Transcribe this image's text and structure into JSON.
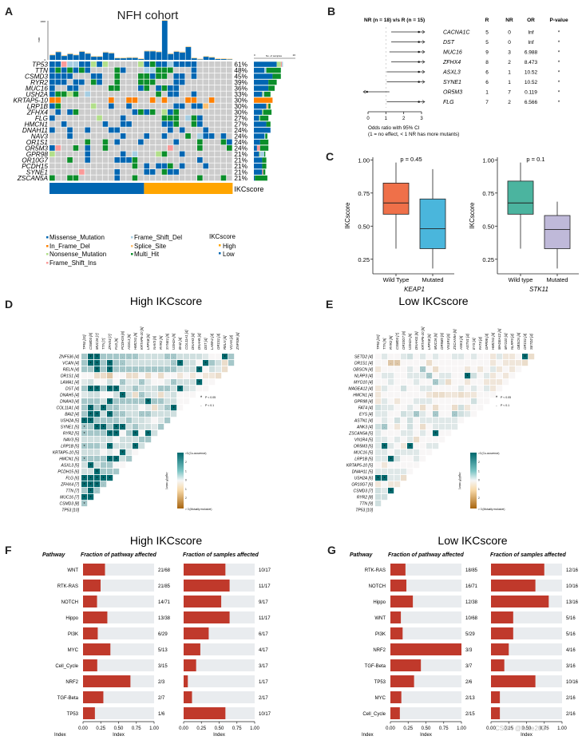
{
  "panels": {
    "A": "A",
    "B": "B",
    "C": "C",
    "D": "D",
    "E": "E",
    "F": "F",
    "G": "G"
  },
  "chart_data": [
    {
      "id": "A",
      "type": "heatmap",
      "title": "NFH cohort",
      "tmb_axis": {
        "label": "TMB",
        "max_label": "1000",
        "min_label": "0"
      },
      "side_axis": {
        "label": "No. of samples",
        "min": 0,
        "max": 20
      },
      "tmb_values": [
        120,
        200,
        100,
        150,
        120,
        210,
        160,
        80,
        80,
        190,
        170,
        40,
        40,
        50,
        50,
        20,
        220,
        220,
        200,
        1000,
        150,
        210,
        190,
        330,
        40,
        10,
        80,
        60,
        20,
        20,
        10
      ],
      "genes": [
        "TP53",
        "TTN",
        "CSMD3",
        "RYR2",
        "MUC16",
        "USH2A",
        "KRTAP5-10",
        "LRP1B",
        "ZFHX4",
        "FLG",
        "HMCN1",
        "DNAH11",
        "NAV3",
        "OR1S1",
        "OR5M3",
        "GPR98",
        "OR10G7",
        "PCDH15",
        "SYNE1",
        "ZSCAN5A"
      ],
      "percents": [
        "61%",
        "48%",
        "45%",
        "39%",
        "36%",
        "33%",
        "30%",
        "30%",
        "30%",
        "27%",
        "27%",
        "24%",
        "24%",
        "24%",
        "24%",
        "21%",
        "21%",
        "21%",
        "21%",
        "21%"
      ],
      "side_bars": [
        [
          [
            "M",
            11
          ],
          [
            "N",
            2
          ],
          [
            "I",
            0.5
          ],
          [
            "D",
            0.5
          ]
        ],
        [
          [
            "M",
            5
          ],
          [
            "D",
            1
          ],
          [
            "H",
            7
          ]
        ],
        [
          [
            "M",
            9
          ],
          [
            "H",
            4
          ]
        ],
        [
          [
            "M",
            7
          ],
          [
            "H",
            4
          ]
        ],
        [
          [
            "M",
            7
          ],
          [
            "H",
            3
          ]
        ],
        [
          [
            "M",
            4
          ],
          [
            "N",
            0.5
          ],
          [
            "D",
            0.5
          ],
          [
            "H",
            3
          ]
        ],
        [
          [
            "F",
            9
          ]
        ],
        [
          [
            "M",
            6
          ],
          [
            "S",
            0.5
          ],
          [
            "S",
            0.5
          ],
          [
            "H",
            1
          ]
        ],
        [
          [
            "M",
            4
          ],
          [
            "N",
            0.5
          ],
          [
            "H",
            4
          ]
        ],
        [
          [
            "M",
            2.5
          ],
          [
            "N",
            0.5
          ],
          [
            "H",
            4
          ]
        ],
        [
          [
            "M",
            6
          ],
          [
            "H",
            2
          ]
        ],
        [
          [
            "M",
            8
          ]
        ],
        [
          [
            "M",
            5
          ],
          [
            "D",
            0.5
          ],
          [
            "H",
            1
          ]
        ],
        [
          [
            "M",
            3
          ],
          [
            "H",
            4
          ]
        ],
        [
          [
            "M",
            1.5
          ],
          [
            "I",
            1.5
          ],
          [
            "H",
            4
          ]
        ],
        [
          [
            "M",
            2.5
          ],
          [
            "N",
            0.5
          ],
          [
            "D",
            2
          ],
          [
            "H",
            0.5
          ]
        ],
        [
          [
            "M",
            4
          ],
          [
            "H",
            2
          ]
        ],
        [
          [
            "M",
            4
          ],
          [
            "H",
            2
          ]
        ],
        [
          [
            "M",
            4
          ],
          [
            "I",
            0.5
          ],
          [
            "H",
            1
          ]
        ],
        [
          [
            "M",
            0.5
          ],
          [
            "H",
            6
          ]
        ]
      ],
      "matrix": [
        "MMIDDMMNMN.....NMHMMDMMMM......",
        "MHMHMHM....HM...DDHHH...M......",
        "MMMM...MM..H...HHMHH.MM.M......",
        "MMM.MM.HM..H...HHH...MM........",
        "M..MM.....HH...MH.MHMM.........",
        "MHHNH.D...........H.MM..M......",
        "FF........F..FF..F.F...FF..F...",
        "MH.....N..M..M.......MM.MMS....",
        ".M.MH.........MHMH.NMH.........",
        "M.......N...M......HHH.DHM.....",
        "..M......M..MM.....MMH..HM.....",
        "M..M..M...MM........M.M...M....",
        "...M........M...M..M...H.DMM.M.",
        "......H..H.M...M.....M...H...HM",
        "MI..H.M..H..........I....H....H",
        "N.....M.....M.D...NH..M........",
        "...H..M....MMMH..........M.....",
        "..............H.M.MMH.M...M....",
        ".....I.....M....MM.HMM.........",
        "H..HH......M..H..........H...H."
      ],
      "ikc_groups": {
        "low_count": 16,
        "high_count": 15,
        "label": "IKCscore"
      },
      "legend": {
        "items": [
          {
            "key": "M",
            "label": "Missense_Mutation",
            "color": "#0066b2"
          },
          {
            "key": "F",
            "label": "In_Frame_Del",
            "color": "#ff8000"
          },
          {
            "key": "N",
            "label": "Nonsense_Mutation",
            "color": "#b2df8a"
          },
          {
            "key": "I",
            "label": "Frame_Shift_Ins",
            "color": "#fb9a99"
          },
          {
            "key": "D",
            "label": "Frame_Shift_Del",
            "color": "#a6cee3"
          },
          {
            "key": "S",
            "label": "Splice_Site",
            "color": "#fdbf6f"
          },
          {
            "key": "H",
            "label": "Multi_Hit",
            "color": "#0b8f2a"
          }
        ],
        "ikc_title": "IKCscore",
        "ikc_items": [
          {
            "label": "High",
            "color": "#ffa500"
          },
          {
            "label": "Low",
            "color": "#0066b2"
          }
        ]
      },
      "empty_color": "#cccccc"
    },
    {
      "id": "B",
      "type": "scatter",
      "title": "NR (n = 18) v/s R (n = 15)",
      "columns": [
        "R",
        "NR",
        "OR",
        "P-value"
      ],
      "xlabel": "Odds ratio with 95% CI",
      "xlabel2": "(1 = no effect, < 1 NR has more mutants)",
      "xlim": [
        0,
        3
      ],
      "xticks": [
        "0",
        "1",
        "2",
        "3"
      ],
      "rows": [
        {
          "gene": "CACNA1C",
          "R": "5",
          "NR": "0",
          "OR": "Inf",
          "p": "*",
          "lo": 1.3,
          "hi": 3,
          "pt": 2.85,
          "arrow": "right"
        },
        {
          "gene": "DST",
          "R": "5",
          "NR": "0",
          "OR": "Inf",
          "p": "*",
          "lo": 1.3,
          "hi": 3,
          "pt": 2.85,
          "arrow": "right"
        },
        {
          "gene": "MUC16",
          "R": "9",
          "NR": "3",
          "OR": "6.988",
          "p": "*",
          "lo": 1.2,
          "hi": 3,
          "pt": 2.85,
          "arrow": "right"
        },
        {
          "gene": "ZFHX4",
          "R": "8",
          "NR": "2",
          "OR": "8.473",
          "p": "*",
          "lo": 1.3,
          "hi": 3,
          "pt": 2.85,
          "arrow": "right"
        },
        {
          "gene": "ASXL3",
          "R": "6",
          "NR": "1",
          "OR": "10.52",
          "p": "*",
          "lo": 1.05,
          "hi": 3,
          "pt": 2.85,
          "arrow": "right"
        },
        {
          "gene": "SYNE1",
          "R": "6",
          "NR": "1",
          "OR": "10.52",
          "p": "*",
          "lo": 1.05,
          "hi": 3,
          "pt": 2.85,
          "arrow": "right"
        },
        {
          "gene": "OR5M3",
          "R": "1",
          "NR": "7",
          "OR": "0.119",
          "p": "*",
          "lo": 0,
          "hi": 1.2,
          "pt": 0.12,
          "arrow": "left"
        },
        {
          "gene": "FLG",
          "R": "7",
          "NR": "2",
          "OR": "6.566",
          "p": "*",
          "lo": 1.05,
          "hi": 3,
          "pt": 2.85,
          "arrow": "right"
        }
      ]
    },
    {
      "id": "C1",
      "type": "box",
      "gene": "KEAP1",
      "ylabel": "IKCscore",
      "ylim": [
        0.14,
        1.02
      ],
      "yticks": [
        0.25,
        0.5,
        0.75,
        1.0
      ],
      "ytick_labels": [
        "0.25",
        "0.50",
        "0.75",
        "1.00"
      ],
      "pvalue": "p = 0.45",
      "groups": [
        {
          "label": "Wild Type",
          "min": 0.33,
          "q1": 0.59,
          "median": 0.675,
          "q3": 0.825,
          "max": 0.98,
          "color": "#ef7049"
        },
        {
          "label": "Mutated",
          "min": 0.18,
          "q1": 0.33,
          "median": 0.48,
          "q3": 0.705,
          "max": 0.93,
          "color": "#4ab6dc"
        }
      ]
    },
    {
      "id": "C2",
      "type": "box",
      "gene": "STK11",
      "ylabel": "IKCscore",
      "ylim": [
        0.14,
        1.02
      ],
      "yticks": [
        0.25,
        0.5,
        0.75,
        1.0
      ],
      "ytick_labels": [
        "0.25",
        "0.50",
        "0.75",
        "1.00"
      ],
      "pvalue": "p = 0.1",
      "groups": [
        {
          "label": "Wild type",
          "min": 0.33,
          "q1": 0.59,
          "median": 0.675,
          "q3": 0.84,
          "max": 0.98,
          "color": "#4bb49f"
        },
        {
          "label": "Mutated",
          "min": 0.18,
          "q1": 0.33,
          "median": 0.475,
          "q3": 0.58,
          "max": 0.685,
          "color": "#bfb9d9"
        }
      ]
    },
    {
      "id": "D",
      "type": "heatmap",
      "title": "High IKCscore",
      "col_genes": [
        "TP53 [10]",
        "CSMD3 [8]",
        "MUC16 [7]",
        "TTN [7]",
        "ZFHX4 [7]",
        "FLG [6]",
        "PCDH15 [6]",
        "ASXL3 [5]",
        "HMCN1 [5]",
        "KRTAP5-10 [5]",
        "LRP1B [5]",
        "NAV3 [5]",
        "RYR2 [5]",
        "SYNE1 [5]",
        "USH2A [5]",
        "BAI2 [4]",
        "COL11A1 [4]",
        "DNAH3 [4]",
        "DNAH5 [4]",
        "DST [4]",
        "LAMA1 [4]",
        "OR1S1 [4]",
        "RELN [4]",
        "VCAN [4]",
        "ZNF536 [4]"
      ],
      "row_genes": [
        "ZNF536 [4]",
        "VCAN [4]",
        "RELN [4]",
        "OR1S1 [4]",
        "LAMA1 [4]",
        "DST [4]",
        "DNAH5 [4]",
        "DNAH3 [4]",
        "COL11A1 [4]",
        "BAI2 [4]",
        "USH2A [5]",
        "SYNE1 [5]",
        "RYR2 [5]",
        "NAV3 [5]",
        "LRP1B [5]",
        "KRTAP5-10 [5]",
        "HMCN1 [5]",
        "ASXL3 [5]",
        "PCDH15 [6]",
        "FLG [6]",
        "ZFHX4 [7]",
        "TTN [7]",
        "MUC16 [7]",
        "CSMD3 [8]",
        "TP53 [10]"
      ],
      "legend_sig": [
        "P < 0.05",
        "P < 0.1"
      ],
      "colorbar": {
        "title": "-log10(P-value)",
        "top": ">3 (Co-occurence)",
        "bottom": "> 3 (Mutually exclusive)",
        "ticks": [
          "2",
          "1",
          "0",
          "1",
          "2"
        ]
      },
      "cells": [
        "1,3s,3s,1,1,1,1p,1p,1p,0.5,0.5,0.5,0.5,1p,1p,0.5,0.5,0.5,0.5,0.3,0,0,3s,1",
        "1,3s,3s,1,3s,1,1p,0.5,0.5,0.5,0.5,0.5,0.5,0.5,1p,3s,0.5,0.5,0,3s,1,0.5,-0.5,1",
        "1,1,3s,1,3s,1p,1p,1p,1p,1p,1p,1p,1p,1p,1p,0.5,0.5,0.5,3s,0,0.5,0.3,-0.5",
        "0,0,-0.5,-0.5,-1,0,0,-0.5,-0.5,0,-0.5,0,-0.5,0,0,-0.3,0,-0.3,0,-0.3,-0.3,-0.5",
        "0.3,0.5,0,0,0.5,0,1p,0.3,0.3,1p,0.3,0,0,0.3,1p,0.5,0.5,0.5,3s,0,0",
        "1,3s,3s,1,3s,3s,0.5,0.5,1p,0.5,0.5,0.5,1p,1p,0.5,3s,0.5,0.3,0,0",
        "0.3,0.5,0.5,0,0,0.5,3s,0.5,-0.5,1p,0.5,0.3,-0.5,0.3,0.5,0,0,0",
        "1,1,1,0.5,3s,1,1p,1p,1p,1p,3s,1p,1p,0.5,0.5,0,0",
        "1,3s,1,3s,1,1p,0.5,0.5,0.5,0,0.3,-0.5,0.5,1p,3s,0",
        "1,3s,3s,0.5,3s,1p,1p,0.5,0.5,1p,1p,0.5,0.5,0.5,0.5",
        "3s,3s,1,1,1,1,0.5,1,0.5,0.5,0.3,0,0.3,1",
        "1s,1,3s,3s,1,3s,3s,0.5,1,0.5,0.5,0.3,1",
        "1s,1,1,1,3s,3s,0,1,3s,0,3s,0.5",
        "0.5,0.5,0.5,0.5,0.5,0,0.5,0.5,0.5,1,1",
        "1s,1,1,0.5,3s,0.5,0.5,0.5,3s,0.5",
        "0.5,0.5,0.5,0,0.3,0,3s,0.3,0",
        "1s,1,1,1,3s,3s,0.5,1",
        "0.5,3s,0.5,1,1,0,0",
        "0.5,0.5,3s,1,1,1",
        "3s,3s,3s,3s,3s",
        "3s,3s,3s,1p",
        "1,3s,1p",
        "3s,3s",
        "1s",
        ""
      ]
    },
    {
      "id": "E",
      "type": "heatmap",
      "title": "Low IKCscore",
      "col_genes": [
        "TP53 [10]",
        "TTN [9]",
        "RYR2 [8]",
        "CSMD3 [7]",
        "OR10G7 [6]",
        "USH2A [6]",
        "DNAH11 [5]",
        "KRTAP5-10 [5]",
        "LRP1B [5]",
        "MUC16 [5]",
        "OR5M3 [5]",
        "VN1R4 [5]",
        "ZSCAN5A [5]",
        "ANK3 [4]",
        "ASTN1 [4]",
        "EYS [4]",
        "FAT4 [4]",
        "GPR98 [4]",
        "HMCN1 [4]",
        "MAGEA12 [4]",
        "MYO10 [4]",
        "NLRP3 [4]",
        "OBSCN [4]",
        "OR1S1 [4]",
        "SETD2 [4]"
      ],
      "row_genes": [
        "SETD2 [4]",
        "OR1S1 [4]",
        "OBSCN [4]",
        "NLRP3 [4]",
        "MYO10 [4]",
        "MAGEA12 [4]",
        "HMCN1 [4]",
        "GPR98 [4]",
        "FAT4 [4]",
        "EYS [4]",
        "ASTN1 [4]",
        "ANK3 [4]",
        "ZSCAN5A [5]",
        "VN1R4 [5]",
        "OR5M3 [5]",
        "MUC16 [5]",
        "LRP1B [5]",
        "KRTAP5-10 [5]",
        "DNAH11 [5]",
        "USH2A [6]",
        "OR10G7 [6]",
        "CSMD3 [7]",
        "RYR2 [8]",
        "TTN [9]",
        "TP53 [10]"
      ],
      "legend_sig": [
        "P < 0.05",
        "P < 0.1"
      ],
      "colorbar": {
        "title": "-log10(P-value)",
        "top": ">3 (Co-occurence)",
        "bottom": "> 3 (Mutually exclusive)",
        "ticks": [
          "2",
          "1",
          "0",
          "1",
          "2"
        ]
      },
      "cells": [
        "0,0.3,0,0,0.3,0.5,0,0.3,0,0.3,0,0,0.3,0.3,0,0.3,0,0,-0.3,0.3,-0.3,-0.3,0,3s,-0.5",
        "0,0,-1p,-1p,0,0,0,0,-0.5,0,0,0,0,0,0,0,0,0,-0.3,0,-0.3,-0.3,-0.3,-0.5",
        "-0.3,0,0,0,0,0.3,0,1p,0,-0.5,0,0,0,0,-0.3,0,-0.3,0,0.3,-0.3,0,-0.3,0",
        "0,0.3,0.3,0,0,0.3,0.3,0.3,1p,0,0.3,0.3,0,0,3s,0.5,0,0.3,-0.3,0,-0.3,0",
        "0,0,0.3,0,0,0,0.3,0,0,1p,0.3,-0.5,0,0,-0.3,0,0,-0.3,-0.3,-0.3,0",
        "-0.3,0.3,0,0,0.5,0,0,0.3,0.3,0,0,0,0,0.3,0,0.3,0,0.3,-0.3,0",
        "-0.3,0,0,0,0,0,0,0,-0.3,-0.5,-0.5,-0.3,-0.3,-0.5,-0.3,-0.3,0,0,0",
        "-0.3,0.3,0,-0.3,0,0,0.3,0.3,0.3,0,0,0,0,0,0,0.5,0,0",
        "0.5,0.3,0.3,0,0,0.3,0,-0.5,0,-0.5,0,0,-0.5,0.5,-0.3,0,0",
        "0.3,0.3,0,0,0.5,0.3,1p,0.3,0,1p,0,0,1p,0.5,0.3,0",
        "0,0.3,0,0.5,0,0.5,0,0.3,0.3,0.3,0.3,0.3,0.3,0",
        "0.5,1p,0,-0.3,0,0.5,0,-0.5,0,0.3,0.3,0.3,0.3",
        "0.3,0,0,0,0.3,0.3,0,0.3,0,3s,0,0",
        "0.3,0.3,0,0.3,0,0.3,-0.5,0,0,0,0",
        "0.3,3s,0.3,0,-0.3,3s,0,0,0.3,0.3",
        "0.3,0.3,0,0.3,0.3,0.3,0.3,0,0",
        "0.3,0.3,3s,0.5,0,0,0.3,0",
        "0,-0.3,0,0,0,0,0",
        "0.3,0.3,0.3,0.3,0.3,0",
        "3s,3s,0.3,0.3,-0.5",
        "-0.3,0,-0.3,-0.3",
        "0.5,0.3,3s",
        "0.5,0.5",
        "0.5",
        ""
      ]
    },
    {
      "id": "F",
      "type": "bar",
      "title": "High IKCscore",
      "headers": {
        "pathway": "Pathway",
        "fraction_pathway": "Fraction of pathway affected",
        "fraction_samples": "Fraction of samples affected"
      },
      "xlim": [
        0,
        1
      ],
      "xticks": [
        "0.00",
        "0.25",
        "0.50",
        "0.75",
        "1.00"
      ],
      "xlabel": "Index",
      "ylabel": "Index",
      "categories": [
        "WNT",
        "RTK-RAS",
        "NOTCH",
        "Hippo",
        "PI3K",
        "MYC",
        "Cell_Cycle",
        "NRF2",
        "TGF-Beta",
        "TP53"
      ],
      "pathway_labels": [
        "21/68",
        "21/85",
        "14/71",
        "13/38",
        "6/29",
        "5/13",
        "3/15",
        "2/3",
        "2/7",
        "1/6"
      ],
      "pathway_values": [
        0.309,
        0.247,
        0.197,
        0.342,
        0.207,
        0.385,
        0.2,
        0.667,
        0.286,
        0.167
      ],
      "sample_labels": [
        "10/17",
        "11/17",
        "9/17",
        "11/17",
        "6/17",
        "4/17",
        "3/17",
        "1/17",
        "2/17",
        "10/17"
      ],
      "sample_values": [
        0.588,
        0.647,
        0.529,
        0.647,
        0.353,
        0.235,
        0.176,
        0.059,
        0.118,
        0.588
      ]
    },
    {
      "id": "G",
      "type": "bar",
      "title": "Low IKCscore",
      "headers": {
        "pathway": "Pathway",
        "fraction_pathway": "Fraction of pathway affected",
        "fraction_samples": "Fraction of samples affected"
      },
      "xlim": [
        0,
        1
      ],
      "xticks": [
        "0.00",
        "0.25",
        "0.50",
        "0.75",
        "1.00"
      ],
      "xlabel": "Index",
      "ylabel": "Index",
      "categories": [
        "RTK-RAS",
        "NOTCH",
        "Hippo",
        "WNT",
        "PI3K",
        "NRF2",
        "TGF-Beta",
        "TP53",
        "MYC",
        "Cell_Cycle"
      ],
      "pathway_labels": [
        "18/85",
        "16/71",
        "12/38",
        "10/68",
        "5/29",
        "3/3",
        "3/7",
        "2/6",
        "2/13",
        "2/15"
      ],
      "pathway_values": [
        0.212,
        0.225,
        0.316,
        0.147,
        0.172,
        1.0,
        0.429,
        0.333,
        0.154,
        0.133
      ],
      "sample_labels": [
        "12/16",
        "10/16",
        "13/16",
        "5/16",
        "5/16",
        "4/16",
        "3/16",
        "10/16",
        "2/16",
        "2/16"
      ],
      "sample_values": [
        0.75,
        0.625,
        0.8125,
        0.3125,
        0.3125,
        0.25,
        0.1875,
        0.625,
        0.125,
        0.125
      ]
    }
  ],
  "watermark": "CSDN @lixue2024"
}
